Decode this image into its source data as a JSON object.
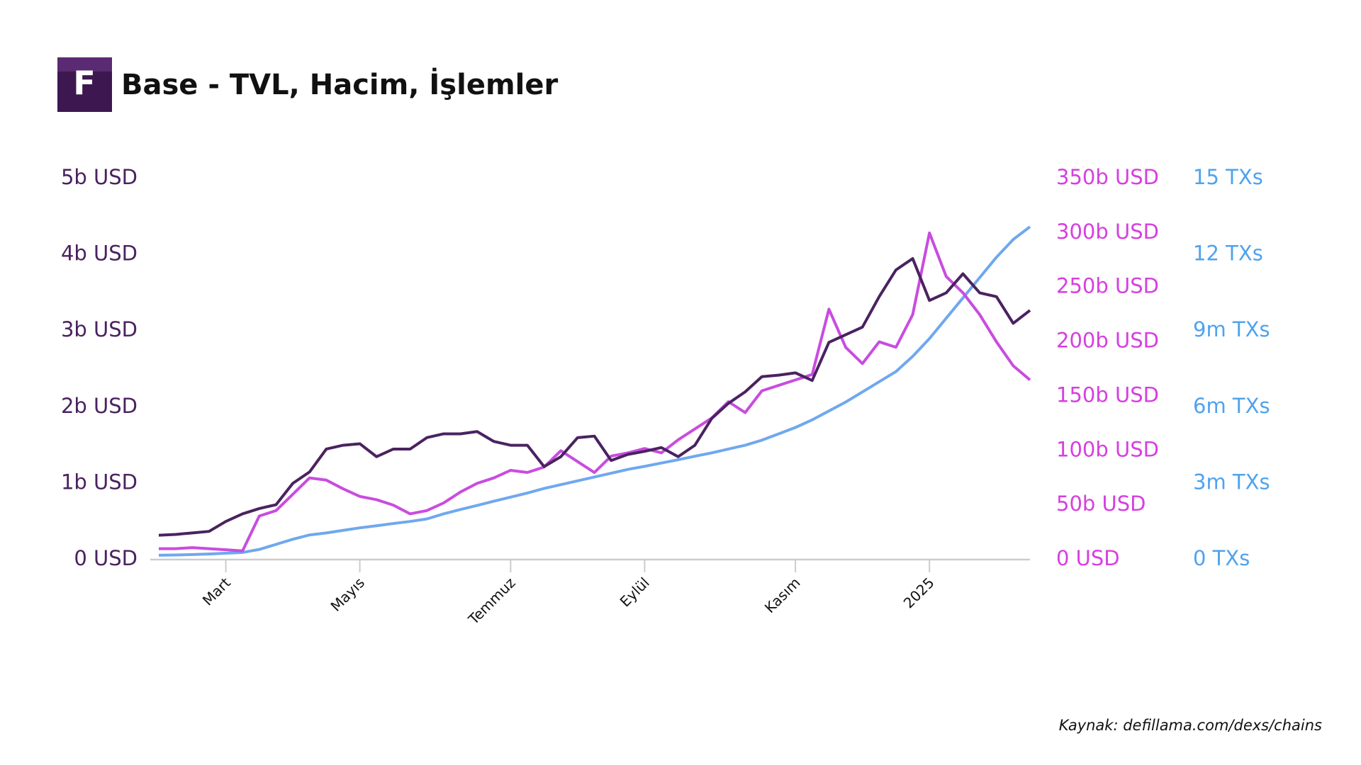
{
  "chart_data": {
    "type": "line",
    "logo_text": "F",
    "title": "Base - TVL, Hacim, İşlemler",
    "source": "Kaynak: defillama.com/dexs/chains",
    "categories": [
      null,
      null,
      null,
      null,
      "Mart",
      null,
      null,
      null,
      null,
      null,
      null,
      null,
      "Mayıs",
      null,
      null,
      null,
      null,
      null,
      null,
      null,
      null,
      "Temmuz",
      null,
      null,
      null,
      null,
      null,
      null,
      null,
      "Eylül",
      null,
      null,
      null,
      null,
      null,
      null,
      null,
      null,
      "Kasım",
      null,
      null,
      null,
      null,
      null,
      null,
      null,
      "2025",
      null,
      null,
      null,
      null,
      null,
      null
    ],
    "ylim": [
      0,
      5
    ],
    "yticks": [
      {
        "value": 0,
        "label": "0 USD"
      },
      {
        "value": 1,
        "label": "1b USD"
      },
      {
        "value": 2,
        "label": "2b USD"
      },
      {
        "value": 3,
        "label": "3b USD"
      },
      {
        "value": 4,
        "label": "4b USD"
      },
      {
        "value": 5,
        "label": "5b USD"
      }
    ],
    "y2lim": [
      0,
      350
    ],
    "y2ticks": [
      {
        "value": 0,
        "label": "0 USD"
      },
      {
        "value": 50,
        "label": "50b USD"
      },
      {
        "value": 100,
        "label": "100b USD"
      },
      {
        "value": 150,
        "label": "150b USD"
      },
      {
        "value": 200,
        "label": "200b USD"
      },
      {
        "value": 250,
        "label": "250b USD"
      },
      {
        "value": 300,
        "label": "300b USD"
      },
      {
        "value": 350,
        "label": "350b USD"
      }
    ],
    "y3lim": [
      0,
      15
    ],
    "y3ticks": [
      {
        "value": 0,
        "label": "0 TXs"
      },
      {
        "value": 3,
        "label": "3m TXs"
      },
      {
        "value": 6,
        "label": "6m TXs"
      },
      {
        "value": 9,
        "label": "9m TXs"
      },
      {
        "value": 12,
        "label": "12 TXs"
      },
      {
        "value": 15,
        "label": "15 TXs"
      }
    ],
    "series": [
      {
        "color": "#6fa8ee",
        "axis": "y3",
        "values": [
          0.17,
          0.18,
          0.2,
          0.22,
          0.25,
          0.28,
          0.4,
          0.6,
          0.8,
          0.97,
          1.05,
          1.15,
          1.25,
          1.33,
          1.42,
          1.5,
          1.6,
          1.8,
          1.97,
          2.13,
          2.3,
          2.46,
          2.62,
          2.8,
          2.95,
          3.1,
          3.25,
          3.4,
          3.55,
          3.67,
          3.8,
          3.93,
          4.07,
          4.2,
          4.35,
          4.5,
          4.7,
          4.95,
          5.2,
          5.5,
          5.85,
          6.2,
          6.6,
          7.0,
          7.4,
          8.0,
          8.7,
          9.5,
          10.3,
          11.1,
          11.9,
          12.6,
          13.1
        ]
      },
      {
        "color": "#c94ce0",
        "axis": "y2",
        "values": [
          10,
          10,
          11,
          10,
          9,
          8,
          40,
          45,
          60,
          75,
          73,
          65,
          58,
          55,
          50,
          42,
          45,
          52,
          62,
          70,
          75,
          82,
          80,
          85,
          100,
          90,
          80,
          95,
          98,
          102,
          98,
          110,
          120,
          130,
          145,
          135,
          155,
          160,
          165,
          170,
          230,
          195,
          180,
          200,
          195,
          225,
          300,
          260,
          245,
          225,
          200,
          178,
          165
        ]
      },
      {
        "color": "#4a2260",
        "axis": "y",
        "values": [
          0.32,
          0.33,
          0.35,
          0.37,
          0.5,
          0.6,
          0.67,
          0.72,
          1.0,
          1.15,
          1.45,
          1.5,
          1.52,
          1.35,
          1.45,
          1.45,
          1.6,
          1.65,
          1.65,
          1.68,
          1.55,
          1.5,
          1.5,
          1.22,
          1.35,
          1.6,
          1.62,
          1.3,
          1.38,
          1.42,
          1.47,
          1.35,
          1.5,
          1.85,
          2.05,
          2.2,
          2.4,
          2.42,
          2.45,
          2.35,
          2.85,
          2.95,
          3.05,
          3.45,
          3.8,
          3.95,
          3.4,
          3.5,
          3.75,
          3.5,
          3.45,
          3.1,
          3.27
        ]
      }
    ]
  }
}
